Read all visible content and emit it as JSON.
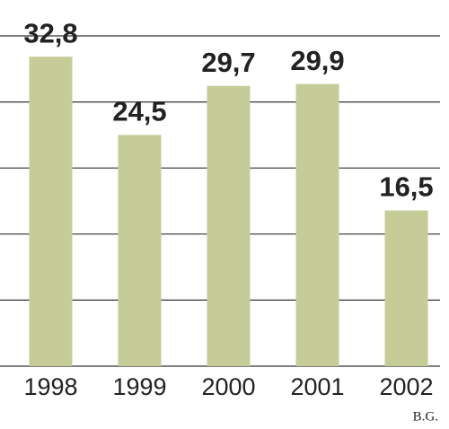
{
  "chart_data": {
    "type": "bar",
    "categories": [
      "1998",
      "1999",
      "2000",
      "2001",
      "2002"
    ],
    "values": [
      32.8,
      24.5,
      29.7,
      29.9,
      16.5
    ],
    "value_labels": [
      "32,8",
      "24,5",
      "29,7",
      "29,9",
      "16,5"
    ],
    "color": "#c5cc98",
    "ylim": [
      0,
      35
    ],
    "yticks": [
      0,
      7,
      14,
      21,
      28,
      35
    ],
    "grid": true,
    "credit": "B.G."
  }
}
